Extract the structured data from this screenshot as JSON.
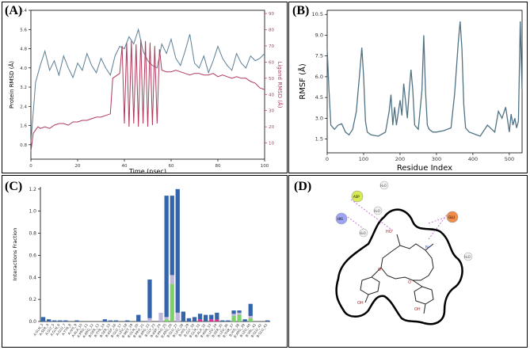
{
  "panels": {
    "a": {
      "label": "(A)"
    },
    "b": {
      "label": "(B)"
    },
    "c": {
      "label": "(C)"
    },
    "d": {
      "label": "(D)"
    }
  },
  "chart_data": [
    {
      "id": "A",
      "type": "line",
      "title": "",
      "xlabel": "Time (nsec)",
      "ylabel": "Protein RMSD (Å)",
      "ylabel2": "Ligand RMSD (Å)",
      "xlim": [
        0,
        100
      ],
      "ylim": [
        0.2,
        6.4
      ],
      "ylim2": [
        0,
        92
      ],
      "xticks": [
        0,
        20,
        40,
        60,
        80,
        100
      ],
      "yticks": [
        0.8,
        1.6,
        2.4,
        3.2,
        4.0,
        4.8,
        5.6,
        6.4
      ],
      "yticks2": [
        10,
        20,
        30,
        40,
        50,
        60,
        70,
        80,
        90
      ],
      "colors": {
        "protein": "#5b7f95",
        "ligand": "#b03a5b"
      },
      "series": [
        {
          "name": "Protein RMSD",
          "axis": "left",
          "x": [
            0,
            2,
            4,
            6,
            8,
            10,
            12,
            14,
            16,
            18,
            20,
            22,
            24,
            26,
            28,
            30,
            32,
            34,
            36,
            38,
            40,
            42,
            44,
            46,
            48,
            50,
            52,
            54,
            56,
            58,
            60,
            62,
            64,
            66,
            68,
            70,
            72,
            74,
            76,
            78,
            80,
            82,
            84,
            86,
            88,
            90,
            92,
            94,
            96,
            98,
            100
          ],
          "values": [
            0.9,
            3.4,
            4.1,
            4.7,
            3.9,
            4.3,
            3.7,
            4.5,
            4.0,
            3.6,
            4.2,
            3.9,
            4.6,
            4.1,
            3.8,
            4.4,
            4.0,
            3.7,
            4.5,
            4.9,
            4.8,
            5.3,
            5.0,
            5.6,
            4.7,
            4.3,
            4.1,
            4.0,
            5.0,
            4.6,
            5.2,
            4.4,
            4.1,
            4.7,
            5.4,
            4.2,
            4.0,
            4.5,
            3.8,
            4.3,
            4.9,
            4.4,
            4.1,
            3.9,
            4.6,
            4.2,
            4.0,
            4.5,
            4.3,
            4.4,
            4.6
          ]
        },
        {
          "name": "Ligand RMSD",
          "axis": "right",
          "x": [
            0,
            1,
            2,
            3,
            4,
            6,
            8,
            10,
            12,
            14,
            16,
            18,
            20,
            22,
            24,
            26,
            28,
            30,
            32,
            34,
            35,
            37,
            38,
            39,
            40,
            41,
            42,
            43,
            44,
            45,
            46,
            47,
            48,
            49,
            50,
            51,
            52,
            53,
            54,
            55,
            56,
            58,
            60,
            62,
            64,
            66,
            68,
            70,
            72,
            74,
            76,
            78,
            80,
            82,
            84,
            86,
            88,
            90,
            92,
            94,
            96,
            98,
            100
          ],
          "values": [
            5,
            16,
            18,
            20,
            19,
            20,
            19,
            21,
            22,
            22,
            21,
            23,
            23,
            24,
            24,
            25,
            26,
            26,
            27,
            28,
            50,
            52,
            53,
            70,
            22,
            72,
            20,
            73,
            22,
            71,
            20,
            74,
            22,
            73,
            20,
            72,
            21,
            70,
            22,
            68,
            55,
            54,
            54,
            55,
            54,
            53,
            52,
            53,
            53,
            52,
            52,
            53,
            51,
            52,
            51,
            50,
            51,
            50,
            50,
            48,
            47,
            44,
            43
          ]
        }
      ]
    },
    {
      "id": "B",
      "type": "line",
      "title": "",
      "xlabel": "Residue Index",
      "ylabel": "RMSF (Å)",
      "xlim": [
        0,
        535
      ],
      "ylim": [
        0.5,
        10.8
      ],
      "xticks": [
        0,
        100,
        200,
        300,
        400,
        500
      ],
      "yticks": [
        1.5,
        3.0,
        4.5,
        6.0,
        7.5,
        9.0,
        10.5
      ],
      "color": "#4f7384",
      "series": [
        {
          "name": "RMSF",
          "x": [
            0,
            5,
            10,
            20,
            30,
            40,
            50,
            60,
            70,
            80,
            90,
            95,
            100,
            105,
            110,
            120,
            140,
            160,
            170,
            175,
            180,
            185,
            190,
            200,
            205,
            210,
            220,
            225,
            230,
            235,
            240,
            250,
            260,
            265,
            270,
            275,
            280,
            290,
            300,
            320,
            340,
            350,
            360,
            365,
            370,
            375,
            380,
            390,
            400,
            420,
            440,
            460,
            470,
            480,
            490,
            500,
            505,
            510,
            515,
            520,
            525,
            530,
            535
          ],
          "values": [
            8.0,
            5.0,
            2.5,
            2.2,
            2.5,
            2.6,
            2.0,
            1.8,
            2.2,
            3.5,
            6.5,
            8.1,
            6.0,
            2.8,
            2.0,
            1.8,
            1.7,
            2.0,
            3.5,
            4.7,
            2.5,
            3.8,
            2.5,
            4.3,
            3.2,
            5.5,
            3.0,
            5.0,
            6.5,
            5.0,
            2.5,
            2.2,
            5.0,
            9.0,
            5.0,
            2.5,
            2.2,
            2.0,
            2.0,
            2.1,
            2.3,
            4.8,
            8.5,
            10.0,
            8.0,
            4.0,
            2.3,
            2.0,
            1.9,
            1.7,
            2.5,
            2.0,
            3.5,
            3.0,
            3.8,
            2.0,
            3.3,
            2.5,
            3.0,
            2.3,
            2.8,
            10.0,
            5.0
          ]
        }
      ]
    },
    {
      "id": "C",
      "type": "bar",
      "title": "",
      "xlabel": "",
      "ylabel": "Interactions Fraction",
      "ylim": [
        0,
        1.22
      ],
      "yticks": [
        0.0,
        0.2,
        0.4,
        0.6,
        0.8,
        1.0,
        1.2
      ],
      "stacked": true,
      "categories": [
        "A:GLN_3",
        "A:SER_4",
        "A:GLY_5",
        "A:GLN_6",
        "A:GLU_7",
        "A:TYR_8",
        "A:HIS_9",
        "A:ALA_10",
        "A:PRO_11",
        "A:ARG_12",
        "B:SER_13",
        "B:TYR_14",
        "B:SER_15",
        "B:ASP_16",
        "B:GLU_17",
        "B:LEU_18",
        "B:MET_19",
        "B:GLN_20",
        "B:PRO_21",
        "B:ARG_22",
        "B:GLY_23",
        "B:ASP_24",
        "B:PRO_25",
        "B:ARG_26",
        "B:GLU_27",
        "B:LEU_28",
        "B:HIS_29",
        "B:GLY_30",
        "B:GLN_31",
        "B:ALA_32",
        "B:ASN_33",
        "B:LEU_34",
        "B:SER_35",
        "B:LEU_36",
        "B:THR_37",
        "B:HIS_38",
        "B:ARG_39",
        "B:LEU_40",
        "B:VAL_41",
        "B:GLU_42",
        "B:GLU_43"
      ],
      "series": [
        {
          "name": "H-bonds",
          "color": "#7ed16b",
          "values": [
            0,
            0,
            0,
            0,
            0,
            0,
            0,
            0,
            0,
            0,
            0,
            0,
            0,
            0,
            0,
            0,
            0,
            0,
            0,
            0,
            0,
            0,
            0.02,
            0.34,
            0,
            0,
            0,
            0,
            0,
            0,
            0,
            0,
            0,
            0,
            0.05,
            0.06,
            0,
            0.03,
            0,
            0,
            0
          ]
        },
        {
          "name": "Hydrophobic",
          "color": "#c3b6dd",
          "values": [
            0,
            0,
            0,
            0,
            0,
            0,
            0,
            0,
            0,
            0,
            0,
            0,
            0,
            0,
            0,
            0,
            0,
            0,
            0,
            0.03,
            0,
            0.08,
            0.02,
            0.08,
            0.08,
            0,
            0,
            0,
            0,
            0,
            0,
            0,
            0,
            0,
            0.02,
            0.02,
            0,
            0.02,
            0,
            0,
            0
          ]
        },
        {
          "name": "Ionic",
          "color": "#d6318f",
          "values": [
            0,
            0,
            0,
            0,
            0,
            0,
            0,
            0,
            0,
            0,
            0,
            0,
            0,
            0,
            0,
            0,
            0,
            0,
            0,
            0,
            0,
            0,
            0,
            0,
            0,
            0,
            0,
            0,
            0.02,
            0,
            0.02,
            0.02,
            0,
            0,
            0,
            0,
            0,
            0,
            0,
            0,
            0
          ]
        },
        {
          "name": "Water bridges",
          "color": "#3465aa",
          "values": [
            0.04,
            0.02,
            0.01,
            0.01,
            0.01,
            0,
            0.01,
            0,
            0,
            0,
            0,
            0.02,
            0.01,
            0.01,
            0,
            0.01,
            0,
            0.06,
            0,
            0.35,
            0,
            0,
            1.1,
            0.72,
            1.12,
            0.09,
            0.03,
            0.04,
            0.05,
            0.06,
            0.04,
            0.06,
            0.01,
            0.01,
            0.03,
            0.02,
            0.02,
            0.11,
            0,
            0,
            0.01
          ]
        }
      ]
    }
  ],
  "diagram_d": {
    "atoms": {
      "oh": "HO",
      "o": "O",
      "h2o": "H₂O",
      "nplus": "N⁺",
      "oh2": "OH",
      "ohm": "OH"
    },
    "residues": [
      "ASP",
      "HIS",
      "GLU"
    ],
    "residue_colors": [
      "#d8ea55",
      "#9ea5f2",
      "#f08d4c"
    ]
  }
}
